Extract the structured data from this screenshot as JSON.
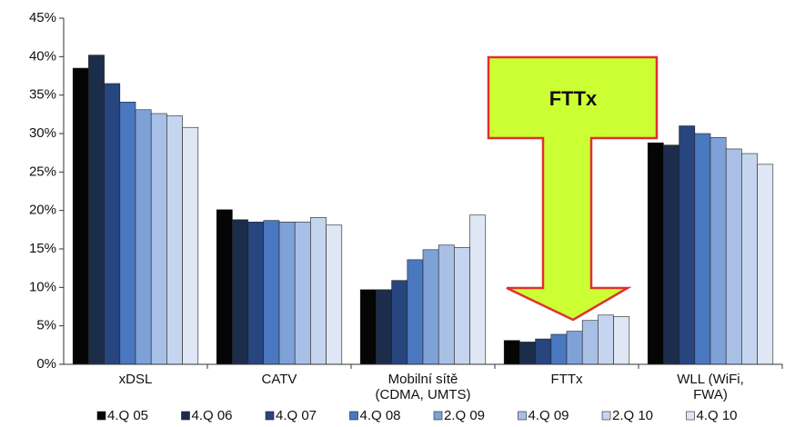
{
  "chart_data": {
    "type": "bar",
    "categories": [
      "xDSL",
      "CATV",
      "Mobilní sítě\n(CDMA, UMTS)",
      "FTTx",
      "WLL (WiFi,\nFWA)"
    ],
    "series": [
      {
        "name": "4.Q 05",
        "color": "#050505",
        "values": [
          38.5,
          20.1,
          9.7,
          3.1,
          28.8
        ]
      },
      {
        "name": "4.Q 06",
        "color": "#1c2d4b",
        "values": [
          40.2,
          18.8,
          9.7,
          2.9,
          28.5
        ]
      },
      {
        "name": "4.Q 07",
        "color": "#27457e",
        "values": [
          36.5,
          18.5,
          10.9,
          3.3,
          31.0
        ]
      },
      {
        "name": "4.Q 08",
        "color": "#4a78c0",
        "values": [
          34.1,
          18.7,
          13.6,
          3.9,
          30.0
        ]
      },
      {
        "name": "2.Q 09",
        "color": "#7ea2d8",
        "values": [
          33.1,
          18.5,
          14.9,
          4.3,
          29.5
        ]
      },
      {
        "name": "4.Q 09",
        "color": "#a8c0e6",
        "values": [
          32.6,
          18.5,
          15.5,
          5.7,
          28.0
        ]
      },
      {
        "name": "2.Q 10",
        "color": "#c6d5ef",
        "values": [
          32.3,
          19.1,
          15.2,
          6.4,
          27.4
        ]
      },
      {
        "name": "4.Q 10",
        "color": "#dfe7f5",
        "values": [
          30.8,
          18.1,
          19.4,
          6.2,
          26.0
        ]
      }
    ],
    "ylim": [
      0,
      45
    ],
    "yticks": [
      {
        "value": 0,
        "label": "0%"
      },
      {
        "value": 5,
        "label": "5%"
      },
      {
        "value": 10,
        "label": "10%"
      },
      {
        "value": 15,
        "label": "15%"
      },
      {
        "value": 20,
        "label": "20%"
      },
      {
        "value": 25,
        "label": "25%"
      },
      {
        "value": 30,
        "label": "30%"
      },
      {
        "value": 35,
        "label": "35%"
      },
      {
        "value": 40,
        "label": "40%"
      },
      {
        "value": 45,
        "label": "45%"
      }
    ],
    "grid": false,
    "annotation": "FTTx"
  }
}
